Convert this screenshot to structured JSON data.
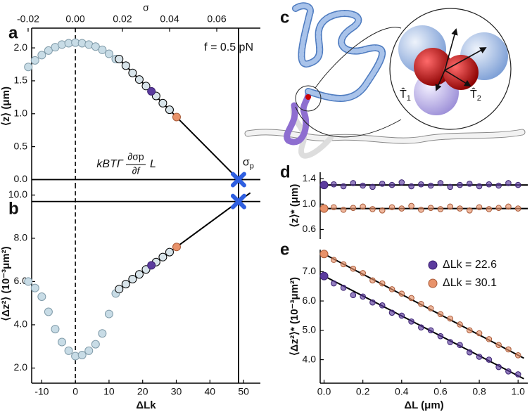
{
  "chart_data": [
    {
      "type": "scatter",
      "panel": "a",
      "ylabel": "⟨z⟩ (μm)",
      "xlim": [
        -13,
        55
      ],
      "ylim": [
        -0.07,
        2.3
      ],
      "yticks": [
        {
          "value": 0,
          "label": "0.0"
        },
        0.5,
        {
          "value": 1,
          "label": "1.0"
        },
        1.5,
        {
          "value": 2,
          "label": "2.0"
        }
      ],
      "x2label": "σ",
      "x2lim": [
        -0.0185,
        0.0785
      ],
      "x2ticks": [
        {
          "value": -0.02,
          "label": "-0.02"
        },
        {
          "value": 0,
          "label": "0.00"
        },
        {
          "value": 0.02,
          "label": "0.02"
        },
        {
          "value": 0.04,
          "label": "0.04"
        },
        {
          "value": 0.06,
          "label": "0.06"
        }
      ],
      "annotation": "f = 0.5 pN",
      "marker_label": {
        "base": "σ",
        "sub": "p"
      },
      "dashed_x": 0,
      "hline": 0,
      "marker": {
        "x": 48.5,
        "y": 0
      },
      "series": [
        {
          "color": "#c8dce6",
          "edgecolor": "#7f9aa8",
          "x": [
            -14,
            -12,
            -10,
            -8,
            -6,
            -4,
            -2,
            0,
            2,
            4,
            6,
            8,
            10,
            12
          ],
          "values": [
            1.71,
            1.81,
            1.89,
            1.96,
            2.01,
            2.05,
            2.07,
            2.08,
            2.07,
            2.05,
            2.02,
            1.97,
            1.91,
            1.83
          ]
        },
        {
          "color": "#d8e4ea",
          "edgecolor": "#000000",
          "x": [
            13,
            15,
            17,
            19,
            21,
            24,
            26,
            28
          ],
          "values": [
            1.83,
            1.73,
            1.62,
            1.52,
            1.42,
            1.27,
            1.16,
            1.06
          ]
        },
        {
          "color": "#5b3b9e",
          "edgecolor": "#3a2070",
          "x": [
            22.6
          ],
          "values": [
            1.34
          ]
        },
        {
          "color": "#e8926a",
          "edgecolor": "#a85a38",
          "x": [
            30.1
          ],
          "values": [
            0.95
          ]
        }
      ],
      "fit_lines": [
        {
          "x": [
            13,
            52
          ],
          "values": [
            1.83,
            -0.18
          ]
        }
      ]
    },
    {
      "type": "scatter",
      "panel": "b",
      "ylabel": "⟨Δz²⟩ (10⁻³μm²)",
      "xlabel": "ΔLk",
      "xlim": [
        -13,
        55
      ],
      "ylim": [
        1.3,
        10.5
      ],
      "xticks": [
        -10,
        0,
        10,
        20,
        30,
        40,
        50
      ],
      "yticks": [
        {
          "value": 2,
          "label": "2.0"
        },
        {
          "value": 4,
          "label": "4.0"
        },
        {
          "value": 6,
          "label": "6.0"
        },
        {
          "value": 8,
          "label": "8.0"
        },
        {
          "value": 10,
          "label": "10.0"
        }
      ],
      "annotation": {
        "prefix": "kBTΓ",
        "numerator": "∂σp",
        "denominator": "∂f",
        "suffix": "L"
      },
      "dashed_x": 0,
      "hline": 9.7,
      "marker": {
        "x": 48.5,
        "y": 9.7
      },
      "series": [
        {
          "color": "#c8dce6",
          "edgecolor": "#7f9aa8",
          "x": [
            -14,
            -12,
            -10,
            -8,
            -6,
            -4,
            -2,
            0,
            2,
            4,
            6,
            8,
            10,
            12
          ],
          "values": [
            6.0,
            5.7,
            5.3,
            4.6,
            3.8,
            3.2,
            2.8,
            2.55,
            2.6,
            2.8,
            3.1,
            3.6,
            4.5,
            5.45
          ]
        },
        {
          "color": "#d8e4ea",
          "edgecolor": "#000000",
          "x": [
            13,
            15,
            17,
            19,
            21,
            24,
            26,
            28
          ],
          "values": [
            5.65,
            5.88,
            6.11,
            6.33,
            6.56,
            6.9,
            7.13,
            7.36
          ]
        },
        {
          "color": "#5b3b9e",
          "edgecolor": "#3a2070",
          "x": [
            22.6
          ],
          "values": [
            6.75
          ]
        },
        {
          "color": "#e8926a",
          "edgecolor": "#a85a38",
          "x": [
            30.1
          ],
          "values": [
            7.6
          ]
        }
      ],
      "fit_lines": [
        {
          "x": [
            13,
            52
          ],
          "values": [
            5.65,
            10.1
          ]
        }
      ]
    },
    {
      "type": "scatter",
      "panel": "d",
      "ylabel": "⟨z⟩* (μm)",
      "xlim": [
        -0.02,
        1.05
      ],
      "ylim": [
        0.45,
        1.5
      ],
      "yticks": [
        0.6,
        {
          "value": 1,
          "label": "1.0"
        },
        1.4
      ],
      "series": [
        {
          "color": "#5b3b9e",
          "edgecolor": "#3a2070",
          "x": [
            0,
            0.05,
            0.1,
            0.15,
            0.2,
            0.25,
            0.3,
            0.35,
            0.4,
            0.45,
            0.5,
            0.55,
            0.6,
            0.65,
            0.7,
            0.75,
            0.8,
            0.85,
            0.9,
            0.95,
            1.0
          ],
          "values": [
            1.3,
            1.31,
            1.28,
            1.33,
            1.29,
            1.27,
            1.32,
            1.3,
            1.34,
            1.28,
            1.31,
            1.29,
            1.33,
            1.27,
            1.3,
            1.32,
            1.28,
            1.31,
            1.29,
            1.33,
            1.3
          ]
        },
        {
          "color": "#e8926a",
          "edgecolor": "#a85a38",
          "x": [
            0,
            0.05,
            0.1,
            0.15,
            0.2,
            0.25,
            0.3,
            0.35,
            0.4,
            0.45,
            0.5,
            0.55,
            0.6,
            0.65,
            0.7,
            0.75,
            0.8,
            0.85,
            0.9,
            0.95,
            1.0
          ],
          "values": [
            0.93,
            0.95,
            0.91,
            0.94,
            0.96,
            0.92,
            0.9,
            0.95,
            0.93,
            0.97,
            0.91,
            0.94,
            0.92,
            0.96,
            0.93,
            0.9,
            0.95,
            0.92,
            0.94,
            0.96,
            0.93
          ]
        }
      ],
      "fit_lines": [
        {
          "x": [
            -0.02,
            1.05
          ],
          "values": [
            1.3,
            1.3
          ]
        },
        {
          "x": [
            -0.02,
            1.05
          ],
          "values": [
            0.93,
            0.93
          ]
        }
      ]
    },
    {
      "type": "scatter",
      "panel": "e",
      "ylabel": "⟨Δz²⟩* (10⁻³μm²)",
      "xlabel": "ΔL (μm)",
      "xlim": [
        -0.02,
        1.05
      ],
      "ylim": [
        3.2,
        7.75
      ],
      "xticks": [
        {
          "value": 0,
          "label": "0.0"
        },
        0.2,
        0.4,
        0.6,
        0.8,
        {
          "value": 1,
          "label": "1.0"
        }
      ],
      "yticks": [
        {
          "value": 4,
          "label": "4.0"
        },
        {
          "value": 5,
          "label": "5.0"
        },
        {
          "value": 6,
          "label": "6.0"
        },
        {
          "value": 7,
          "label": "7.0"
        }
      ],
      "legend": "upper right",
      "series": [
        {
          "name": "ΔLk  = 22.6",
          "color": "#5b3b9e",
          "edgecolor": "#3a2070",
          "x": [
            0,
            0.05,
            0.1,
            0.15,
            0.2,
            0.25,
            0.3,
            0.35,
            0.4,
            0.45,
            0.5,
            0.55,
            0.6,
            0.65,
            0.7,
            0.75,
            0.8,
            0.85,
            0.9,
            0.95,
            1.0
          ],
          "values": [
            6.85,
            6.6,
            6.45,
            6.2,
            6.15,
            5.95,
            5.85,
            5.6,
            5.5,
            5.3,
            5.1,
            5.0,
            4.8,
            4.6,
            4.5,
            4.25,
            4.1,
            4.0,
            3.75,
            3.6,
            3.5
          ]
        },
        {
          "name": "ΔLk  = 30.1",
          "color": "#e8926a",
          "edgecolor": "#a85a38",
          "x": [
            0,
            0.05,
            0.1,
            0.15,
            0.2,
            0.25,
            0.3,
            0.35,
            0.4,
            0.45,
            0.5,
            0.55,
            0.6,
            0.65,
            0.7,
            0.75,
            0.8,
            0.85,
            0.9,
            0.95,
            1.0
          ],
          "values": [
            7.6,
            7.4,
            7.25,
            7.1,
            6.95,
            6.7,
            6.6,
            6.4,
            6.25,
            6.1,
            5.9,
            5.75,
            5.55,
            5.4,
            5.2,
            5.0,
            4.9,
            4.7,
            4.5,
            4.35,
            4.15
          ]
        }
      ],
      "fit_lines": [
        {
          "x": [
            0,
            1.03
          ],
          "values": [
            6.85,
            3.35
          ]
        },
        {
          "x": [
            0,
            1.03
          ],
          "values": [
            7.6,
            4.05
          ]
        }
      ]
    }
  ],
  "image_panel": {
    "panel": "c",
    "labels": [
      {
        "base": "T̂",
        "sub": "1"
      },
      {
        "base": "T̂",
        "sub": "2"
      }
    ]
  }
}
